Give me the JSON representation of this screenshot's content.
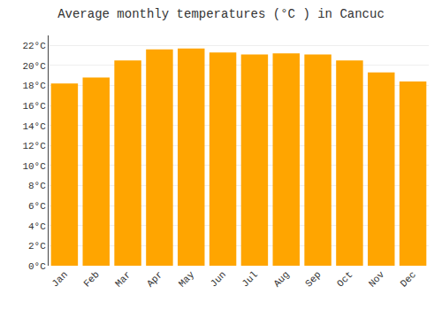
{
  "chart_data": {
    "type": "bar",
    "title": "Average monthly temperatures (°C ) in Cancuc",
    "categories": [
      "Jan",
      "Feb",
      "Mar",
      "Apr",
      "May",
      "Jun",
      "Jul",
      "Aug",
      "Sep",
      "Oct",
      "Nov",
      "Dec"
    ],
    "values": [
      18.2,
      18.8,
      20.5,
      21.6,
      21.7,
      21.3,
      21.1,
      21.2,
      21.1,
      20.5,
      19.3,
      18.4
    ],
    "color": "#FFA500",
    "ylim": [
      0,
      23
    ],
    "yticks": [
      {
        "value": 0,
        "label": "0°C"
      },
      {
        "value": 2,
        "label": "2°C"
      },
      {
        "value": 4,
        "label": "4°C"
      },
      {
        "value": 6,
        "label": "6°C"
      },
      {
        "value": 8,
        "label": "8°C"
      },
      {
        "value": 10,
        "label": "10°C"
      },
      {
        "value": 12,
        "label": "12°C"
      },
      {
        "value": 14,
        "label": "14°C"
      },
      {
        "value": 16,
        "label": "16°C"
      },
      {
        "value": 18,
        "label": "18°C"
      },
      {
        "value": 20,
        "label": "20°C"
      },
      {
        "value": 22,
        "label": "22°C"
      }
    ],
    "grid": true
  }
}
